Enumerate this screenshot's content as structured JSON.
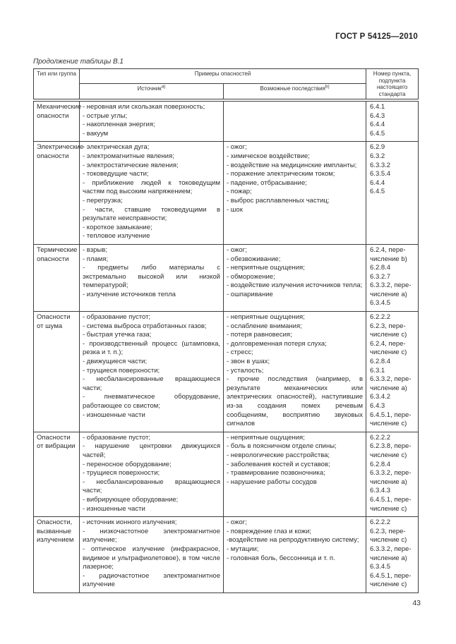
{
  "page": {
    "standard_number": "ГОСТ Р 54125—2010",
    "table_caption": "Продолжение таблицы В.1",
    "page_number": "43"
  },
  "table": {
    "headers": {
      "type_group": "Тип или группа",
      "examples": "Примеры опасностей",
      "source": "Источник",
      "source_footnote": "a)",
      "consequences": "Возможные последствия",
      "consequences_footnote": "b)",
      "clause": "Номер пункта, подпункта настоящего стандарта"
    },
    "rows": [
      {
        "type": "Механические опасности",
        "sources": [
          "- неровная или скользкая поверхность;",
          "- острые углы;",
          "- накопленная энергия;",
          "- вакуум"
        ],
        "consequences": [],
        "clauses": [
          "6.4.1",
          "6.4.3",
          "6.4.4",
          "6.4.5"
        ]
      },
      {
        "type": "Электрические опасности",
        "sources": [
          "- электрическая дуга;",
          "- электромагнитные явления;",
          "- электростатические явления;",
          "- токоведущие части;",
          "- приближение людей к токоведущим частям под высоким напряжением;",
          "- перегрузка;",
          "- части, ставшие токоведущими в результате неисправности;",
          "- короткое замыкание;",
          "- тепловое излучение"
        ],
        "consequences": [
          "- ожог;",
          "- химическое воздействие;",
          "- воздействие на медицинские импланты;",
          "- поражение электрическим током;",
          "- падение, отбрасывание;",
          "- пожар;",
          "- выброс расплавленных частиц;",
          "- шок"
        ],
        "clauses": [
          "6.2.9",
          "6.3.2",
          "6.3.3.2",
          "6.3.5.4",
          "6.4.4",
          "6.4.5"
        ]
      },
      {
        "type": "Термические опасности",
        "sources": [
          "- взрыв;",
          "- пламя;",
          "- предметы либо материалы с экстремально высокой или низкой температурой;",
          "- излучение источников тепла"
        ],
        "consequences": [
          "- ожог;",
          "- обезвоживание;",
          "- неприятные ощущения;",
          "- обморожение;",
          "- воздействие излучения источников тепла;",
          "- ошпаривание"
        ],
        "clauses": [
          "6.2.4, пере-числение b)",
          "6.2.8.4",
          "6.3.2.7",
          "6.3.3.2, пере-числение a)",
          "6.3.4.5"
        ]
      },
      {
        "type": "Опасности от шума",
        "sources": [
          "- образование пустот;",
          "- система выброса отработанных газов;",
          "- быстрая утечка газа;",
          "- производственный процесс (штамповка, резка и т. п.);",
          "- движущиеся части;",
          "- трущиеся поверхности;",
          "- несбалансированные вращающиеся части;",
          "- пневматическое оборудование, работающее со свистом;",
          "- изношенные части"
        ],
        "consequences": [
          "- неприятные ощущения;",
          "- ослабление внимания;",
          "- потеря равновесия;",
          "- долговременная потеря слуха;",
          "- стресс;",
          "- звон в ушах;",
          "- усталость;",
          "- прочие последствия (например, в результате механических или электрических опасностей), наступившие из-за создания помех речевым сообщениям, восприятию звуковых сигналов"
        ],
        "clauses": [
          "6.2.2.2",
          "6.2.3, пере-числение c)",
          "6.2.4, пере-числение c)",
          "6.2.8.4",
          "6.3.1",
          "6.3.3.2, пере-числение a)",
          "6.3.4.2",
          "6.4.3",
          "6.4.5.1, пере-числение c)"
        ]
      },
      {
        "type": "Опасности от вибрации",
        "sources": [
          "- образование пустот;",
          "- нарушение центровки движущихся частей;",
          "- переносное оборудование;",
          "- трущиеся поверхности;",
          "- несбалансированные вращающиеся части;",
          "- вибрирующее оборудование;",
          "- изношенные части"
        ],
        "consequences": [
          "- неприятные ощущения;",
          "- боль в поясничном отделе спины;",
          "- неврологические расстройства;",
          "- заболевания костей и суставов;",
          "- травмирование позвоночника;",
          "- нарушение работы сосудов"
        ],
        "clauses": [
          "6.2.2.2",
          "6.2.3.8, пере-числение c)",
          "6.2.8.4",
          "6.3.3.2, пере-числение a)",
          "6.3.4.3",
          "6.4.5.1, пере-числение c)"
        ]
      },
      {
        "type": "Опасности, вызванные излучением",
        "sources": [
          "- источник ионного излучения;",
          "- низкочастотное электромагнитное излучение;",
          "- оптическое излучение (инфракрасное, видимое и ультрафиолетовое), в том числе лазерное;",
          "- радиочастотное электромагнитное излучение"
        ],
        "consequences": [
          "- ожог;",
          "- повреждение глаз и кожи;",
          "-воздействие на репродуктивную систему;",
          "- мутации;",
          "- головная боль, бессонница и т. п."
        ],
        "clauses": [
          "6.2.2.2",
          "6.2.3, пере-числение c)",
          "6.3.3.2, пере-числение a)",
          "6.3.4.5",
          "6.4.5.1, пере-числение c)"
        ]
      }
    ]
  }
}
